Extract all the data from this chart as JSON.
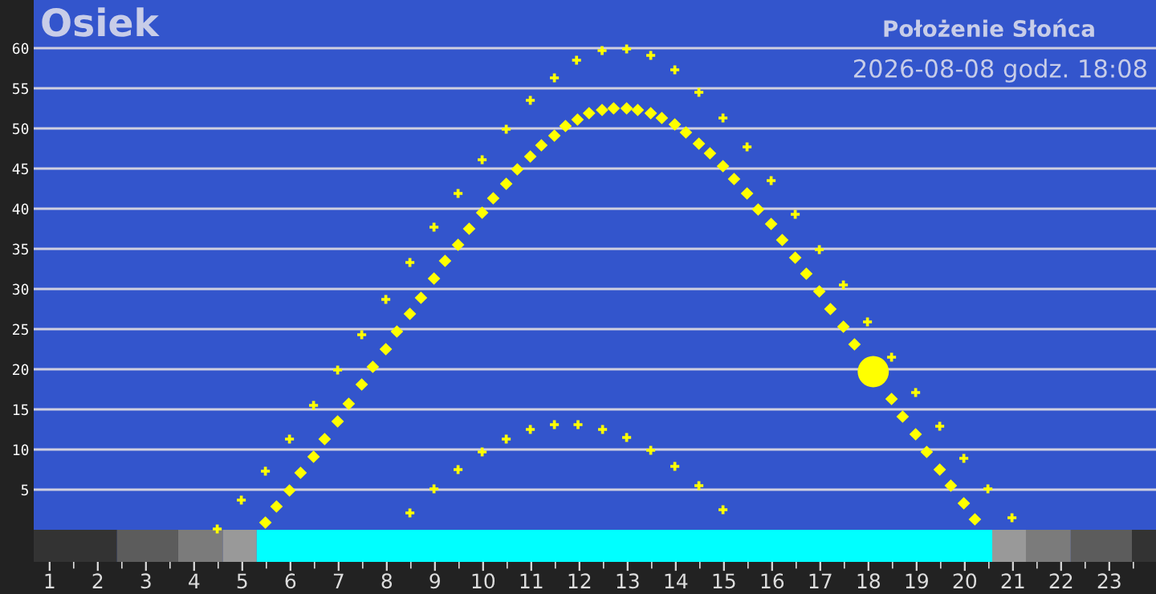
{
  "chart_data": {
    "type": "scatter",
    "title": "Osiek",
    "subtitle": "Położenie Słońca",
    "annotations": [
      "2026-08-08 godz. 18:08"
    ],
    "xlim": [
      0.67,
      23.97
    ],
    "xticks": [
      1,
      {
        "value": 1.5,
        "label": null
      },
      2,
      {
        "value": 2.5,
        "label": null
      },
      3,
      {
        "value": 3.5,
        "label": null
      },
      4,
      {
        "value": 4.5,
        "label": null
      },
      5,
      {
        "value": 5.5,
        "label": null
      },
      6,
      {
        "value": 6.5,
        "label": null
      },
      7,
      {
        "value": 7.5,
        "label": null
      },
      8,
      {
        "value": 8.5,
        "label": null
      },
      9,
      {
        "value": 9.5,
        "label": null
      },
      10,
      {
        "value": 10.5,
        "label": null
      },
      11,
      {
        "value": 11.5,
        "label": null
      },
      12,
      {
        "value": 12.5,
        "label": null
      },
      13,
      {
        "value": 13.5,
        "label": null
      },
      14,
      {
        "value": 14.5,
        "label": null
      },
      15,
      {
        "value": 15.5,
        "label": null
      },
      16,
      {
        "value": 16.5,
        "label": null
      },
      17,
      {
        "value": 17.5,
        "label": null
      },
      18,
      {
        "value": 18.5,
        "label": null
      },
      19,
      {
        "value": 19.5,
        "label": null
      },
      20,
      {
        "value": 20.5,
        "label": null
      },
      21,
      {
        "value": 21.5,
        "label": null
      },
      22,
      {
        "value": 22.5,
        "label": null
      },
      23,
      {
        "value": 23.5,
        "label": null
      }
    ],
    "ylim": [
      -4,
      66
    ],
    "yticks": [
      5,
      10,
      15,
      20,
      25,
      30,
      35,
      40,
      45,
      50,
      55,
      60
    ],
    "grid": "y",
    "series": [
      {
        "color": "#ffff00",
        "marker": "cross",
        "x": [
          4.48,
          4.98,
          5.48,
          5.98,
          6.48,
          6.98,
          7.48,
          7.98,
          8.48,
          8.98,
          9.48,
          9.98,
          10.48,
          10.98,
          11.48,
          11.94,
          12.47,
          12.98,
          13.48,
          13.98,
          14.48,
          14.98,
          15.48,
          15.98,
          16.48,
          16.98,
          17.48,
          17.98,
          18.48,
          18.98,
          19.48,
          19.98,
          20.48,
          20.98
        ],
        "values": [
          0.1,
          3.7,
          7.3,
          11.3,
          15.5,
          19.9,
          24.3,
          28.7,
          33.3,
          37.7,
          41.9,
          46.1,
          49.9,
          53.5,
          56.3,
          58.5,
          59.7,
          59.9,
          59.1,
          57.3,
          54.5,
          51.3,
          47.7,
          43.5,
          39.3,
          34.9,
          30.5,
          25.9,
          21.5,
          17.1,
          12.9,
          8.9,
          5.1,
          1.5
        ]
      },
      {
        "color": "#ffff00",
        "marker": "diamond",
        "x": [
          5.48,
          5.71,
          5.98,
          6.21,
          6.48,
          6.71,
          6.98,
          7.21,
          7.48,
          7.71,
          7.98,
          8.21,
          8.48,
          8.71,
          8.98,
          9.21,
          9.48,
          9.71,
          9.98,
          10.21,
          10.48,
          10.71,
          10.98,
          11.21,
          11.48,
          11.71,
          11.96,
          12.2,
          12.47,
          12.71,
          12.98,
          13.21,
          13.48,
          13.71,
          13.98,
          14.21,
          14.48,
          14.71,
          14.98,
          15.21,
          15.48,
          15.71,
          15.98,
          16.21,
          16.48,
          16.71,
          16.98,
          17.21,
          17.48,
          17.71,
          18.48,
          18.71,
          18.98,
          19.21,
          19.48,
          19.71,
          19.98,
          20.21
        ],
        "values": [
          0.9,
          2.9,
          4.9,
          7.1,
          9.1,
          11.3,
          13.5,
          15.7,
          18.1,
          20.3,
          22.5,
          24.7,
          26.9,
          28.9,
          31.3,
          33.5,
          35.5,
          37.5,
          39.5,
          41.3,
          43.1,
          44.9,
          46.5,
          47.9,
          49.1,
          50.3,
          51.1,
          51.9,
          52.3,
          52.5,
          52.5,
          52.3,
          51.9,
          51.3,
          50.5,
          49.5,
          48.1,
          46.9,
          45.3,
          43.7,
          41.9,
          39.9,
          38.1,
          36.1,
          33.9,
          31.9,
          29.7,
          27.5,
          25.3,
          23.1,
          16.3,
          14.1,
          11.9,
          9.7,
          7.5,
          5.5,
          3.3,
          1.3
        ]
      },
      {
        "color": "#ffff00",
        "marker": "cross",
        "x": [
          8.48,
          8.98,
          9.48,
          9.98,
          10.48,
          10.98,
          11.48,
          11.97,
          12.48,
          12.98,
          13.48,
          13.98,
          14.48,
          14.98
        ],
        "values": [
          2.1,
          5.1,
          7.5,
          9.7,
          11.3,
          12.5,
          13.1,
          13.1,
          12.5,
          11.5,
          9.9,
          7.9,
          5.5,
          2.5
        ]
      },
      {
        "color": "#ffff00",
        "marker": "circle",
        "x": [
          18.1
        ],
        "values": [
          19.7
        ]
      }
    ],
    "bands": [
      {
        "axis": "x",
        "from": 0.67,
        "to": 2.4,
        "color": "#333333"
      },
      {
        "axis": "x",
        "from": 2.4,
        "to": 3.67,
        "color": "#5c5c5c"
      },
      {
        "axis": "x",
        "from": 3.67,
        "to": 4.6,
        "color": "#7b7b7b"
      },
      {
        "axis": "x",
        "from": 4.6,
        "to": 5.3,
        "color": "#999999"
      },
      {
        "axis": "x",
        "from": 5.3,
        "to": 20.57,
        "color": "#00ffff"
      },
      {
        "axis": "x",
        "from": 20.57,
        "to": 21.27,
        "color": "#999999"
      },
      {
        "axis": "x",
        "from": 21.27,
        "to": 22.2,
        "color": "#7b7b7b"
      },
      {
        "axis": "x",
        "from": 22.2,
        "to": 23.47,
        "color": "#5c5c5c"
      },
      {
        "axis": "x",
        "from": 23.47,
        "to": 23.97,
        "color": "#333333"
      }
    ]
  }
}
